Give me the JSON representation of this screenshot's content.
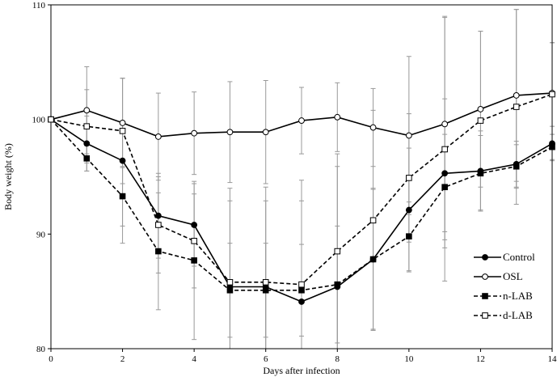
{
  "chart_data": {
    "type": "line",
    "title": "",
    "xlabel": "Days after infection",
    "ylabel": "Body weight (%)",
    "xlim": [
      0,
      14
    ],
    "ylim": [
      80,
      110
    ],
    "xticks": [
      0,
      2,
      4,
      6,
      8,
      10,
      12,
      14
    ],
    "yticks": [
      80,
      90,
      100,
      110
    ],
    "grid": false,
    "legend_position": "bottom-right",
    "x": [
      0,
      1,
      2,
      3,
      4,
      5,
      6,
      7,
      8,
      9,
      10,
      11,
      12,
      13,
      14
    ],
    "series": [
      {
        "name": "Control",
        "line": "solid",
        "marker": "filled-circle",
        "values": [
          100,
          97.9,
          96.4,
          91.6,
          90.8,
          85.4,
          85.4,
          84.1,
          85.4,
          87.8,
          92.1,
          95.3,
          95.5,
          96.1,
          97.9
        ],
        "error": [
          0,
          2.4,
          7.2,
          3.7,
          3.6,
          7.5,
          7.5,
          8.8,
          10.5,
          6.2,
          5.4,
          6.5,
          3.5,
          2.0,
          1.5
        ]
      },
      {
        "name": "OSL",
        "line": "solid",
        "marker": "open-circle",
        "values": [
          100,
          100.8,
          99.7,
          98.5,
          98.8,
          98.9,
          98.9,
          99.9,
          100.2,
          99.3,
          98.6,
          99.6,
          100.9,
          102.1,
          102.3
        ],
        "error": [
          0,
          3.8,
          3.9,
          3.8,
          3.6,
          4.4,
          4.5,
          2.9,
          3.0,
          3.4,
          6.9,
          9.4,
          6.8,
          7.5,
          4.4
        ]
      },
      {
        "name": "n-LAB",
        "line": "dashed",
        "marker": "filled-square",
        "values": [
          100,
          96.6,
          93.3,
          88.5,
          87.7,
          85.1,
          85.1,
          85.1,
          85.6,
          87.8,
          89.8,
          94.1,
          95.3,
          95.9,
          97.6
        ],
        "error": [
          0,
          1.1,
          2.6,
          5.1,
          6.9,
          4.1,
          4.1,
          4.0,
          5.1,
          6.1,
          3.0,
          4.6,
          3.3,
          1.9,
          1.1
        ]
      },
      {
        "name": "d-LAB",
        "line": "dashed",
        "marker": "open-square",
        "values": [
          100,
          99.4,
          99.0,
          90.8,
          89.4,
          85.8,
          85.8,
          85.6,
          88.5,
          91.2,
          94.9,
          97.4,
          99.9,
          101.1,
          102.2
        ],
        "error": [
          0,
          3.2,
          4.6,
          4.2,
          4.1,
          8.2,
          8.3,
          9.1,
          8.5,
          9.6,
          5.6,
          11.5,
          7.8,
          8.5,
          4.5
        ]
      }
    ]
  }
}
